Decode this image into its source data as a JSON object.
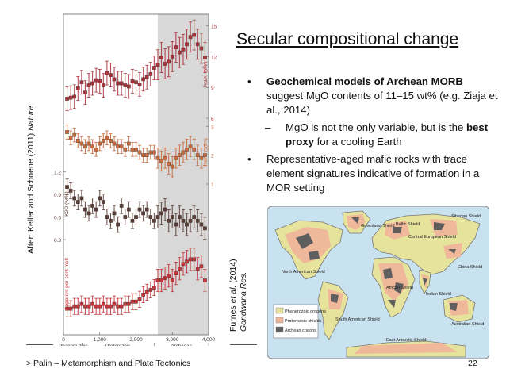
{
  "slide": {
    "title": "Secular compositional change",
    "bullets": [
      {
        "parts": [
          {
            "t": "Geochemical models of Archean MORB",
            "b": true
          },
          {
            "t": " suggest MgO contents of 11–15 wt% (e.g. Ziaja et al., 2014)",
            "b": false
          }
        ]
      },
      {
        "sub": true,
        "parts": [
          {
            "t": "MgO is not the only variable, but is the ",
            "b": false
          },
          {
            "t": "best proxy",
            "b": true
          },
          {
            "t": " for a cooling Earth",
            "b": false
          }
        ]
      },
      {
        "parts": [
          {
            "t": "Representative-aged mafic rocks with trace element signatures indicative of formation in a MOR setting",
            "b": false
          }
        ]
      }
    ],
    "bullet_glyph": "•",
    "dash_glyph": "–",
    "credit_left": {
      "prefix": "After: Keller and Schoene (2011) ",
      "journal": "Nature"
    },
    "credit_right": {
      "line1_prefix": "Furnes ",
      "line1_italic": "et al.",
      "line1_suffix": " (2014)",
      "line2": "Gondwana Res."
    },
    "footer": "> Palin – Metamorphism and Plate Tectonics",
    "page_number": "22"
  },
  "map": {
    "labels": [
      "Greenland Shield",
      "Baltic Shield",
      "Siberian Shield",
      "Central European Shield",
      "North American Shield",
      "African Shield",
      "China Shield",
      "Indian Shield",
      "South American Shield",
      "Australian Shield",
      "East Antarctic Shield"
    ],
    "legend": [
      "Phanerozoic orogens",
      "Proterozoic shields",
      "Archean cratons"
    ],
    "colors": {
      "ocean": "#c9e2f0",
      "phanerozoic": "#e6e39c",
      "proterozoic": "#f0b89a",
      "archean": "#5e5e5e",
      "land_outline": "#777777"
    }
  },
  "chart_data": {
    "type": "scatter",
    "x_axis": {
      "ticks": [
        "0",
        "1,000",
        "2,000",
        "3,000",
        "4,000"
      ],
      "range": [
        0,
        4000
      ],
      "eons": [
        "Phanero-zoic",
        "Proterozoic",
        "Archaean"
      ],
      "shaded_range": [
        2600,
        4000
      ]
    },
    "shade_color": "#d8d8d8",
    "panels": [
      {
        "name": "MgO (wt%)",
        "side": "right",
        "color": "#a8323a",
        "ticks": [
          "6",
          "9",
          "12",
          "15"
        ],
        "x": [
          100,
          200,
          300,
          400,
          500,
          600,
          700,
          800,
          900,
          1000,
          1100,
          1200,
          1300,
          1400,
          1500,
          1600,
          1700,
          1800,
          1900,
          2000,
          2100,
          2200,
          2300,
          2400,
          2500,
          2600,
          2700,
          2800,
          2900,
          3000,
          3100,
          3200,
          3300,
          3400,
          3500,
          3600,
          3700,
          3800,
          3900
        ],
        "values": [
          7.9,
          8.0,
          8.1,
          8.9,
          9.5,
          8.5,
          9.2,
          9.4,
          9.7,
          9.6,
          9.2,
          10.4,
          10.2,
          9.8,
          9.4,
          9.4,
          9.2,
          9.1,
          9.6,
          9.5,
          9.3,
          9.8,
          10.0,
          10.3,
          10.9,
          11.2,
          11.9,
          11.3,
          11.5,
          12.0,
          12.9,
          12.4,
          12.7,
          13.2,
          13.9,
          14.1,
          13.2,
          12.8,
          11.9
        ]
      },
      {
        "name": "Na2O (wt%)",
        "side": "right",
        "color": "#c76a3d",
        "ticks": [
          "1",
          "2",
          "3"
        ],
        "x": [
          100,
          200,
          300,
          400,
          500,
          600,
          700,
          800,
          900,
          1000,
          1100,
          1200,
          1300,
          1400,
          1500,
          1600,
          1700,
          1800,
          1900,
          2000,
          2100,
          2200,
          2300,
          2400,
          2500,
          2600,
          2700,
          2800,
          2900,
          3000,
          3100,
          3200,
          3300,
          3400,
          3500,
          3600,
          3700,
          3800,
          3900
        ],
        "values": [
          2.8,
          2.6,
          2.7,
          2.5,
          2.4,
          2.3,
          2.4,
          2.3,
          2.2,
          2.4,
          2.5,
          2.6,
          2.5,
          2.4,
          2.3,
          2.3,
          2.2,
          2.4,
          2.2,
          2.2,
          2.1,
          2.0,
          2.0,
          2.1,
          2.1,
          1.9,
          1.8,
          1.9,
          1.7,
          1.6,
          1.9,
          2.0,
          2.1,
          2.2,
          2.3,
          2.2,
          2.0,
          1.9,
          2.0
        ]
      },
      {
        "name": "K2O (wt%)",
        "side": "left",
        "color": "#5a3d36",
        "ticks": [
          "0.3",
          "0.6",
          "0.9",
          "1.2"
        ],
        "x": [
          100,
          200,
          300,
          400,
          500,
          600,
          700,
          800,
          900,
          1000,
          1100,
          1200,
          1300,
          1400,
          1500,
          1600,
          1700,
          1800,
          1900,
          2000,
          2100,
          2200,
          2300,
          2400,
          2500,
          2600,
          2700,
          2800,
          2900,
          3000,
          3100,
          3200,
          3300,
          3400,
          3500,
          3600,
          3700,
          3800,
          3900
        ],
        "values": [
          1.0,
          0.95,
          0.85,
          0.8,
          0.85,
          0.7,
          0.65,
          0.75,
          0.7,
          0.85,
          0.8,
          0.6,
          0.55,
          0.65,
          0.5,
          0.75,
          0.6,
          0.7,
          0.55,
          0.6,
          0.7,
          0.65,
          0.7,
          0.6,
          0.55,
          0.6,
          0.65,
          0.7,
          0.55,
          0.6,
          0.5,
          0.6,
          0.55,
          0.5,
          0.55,
          0.6,
          0.55,
          0.5,
          0.45
        ]
      },
      {
        "name": "Apparent per cent melt",
        "side": "left",
        "color": "#c2353a",
        "ticks": [],
        "x": [
          100,
          200,
          300,
          400,
          500,
          600,
          700,
          800,
          900,
          1000,
          1100,
          1200,
          1300,
          1400,
          1500,
          1600,
          1700,
          1800,
          1900,
          2000,
          2100,
          2200,
          2300,
          2400,
          2500,
          2600,
          2700,
          2800,
          2900,
          3000,
          3100,
          3200,
          3300,
          3400,
          3500,
          3600,
          3700,
          3800,
          3900
        ],
        "values": [
          10,
          10,
          11,
          11,
          12,
          11,
          11,
          12,
          11,
          11,
          12,
          11,
          11,
          12,
          11,
          11,
          12,
          12,
          13,
          13,
          14,
          16,
          17,
          18,
          19,
          22,
          22,
          23,
          24,
          22,
          25,
          27,
          29,
          30,
          31,
          31,
          27,
          28,
          22
        ]
      }
    ]
  }
}
